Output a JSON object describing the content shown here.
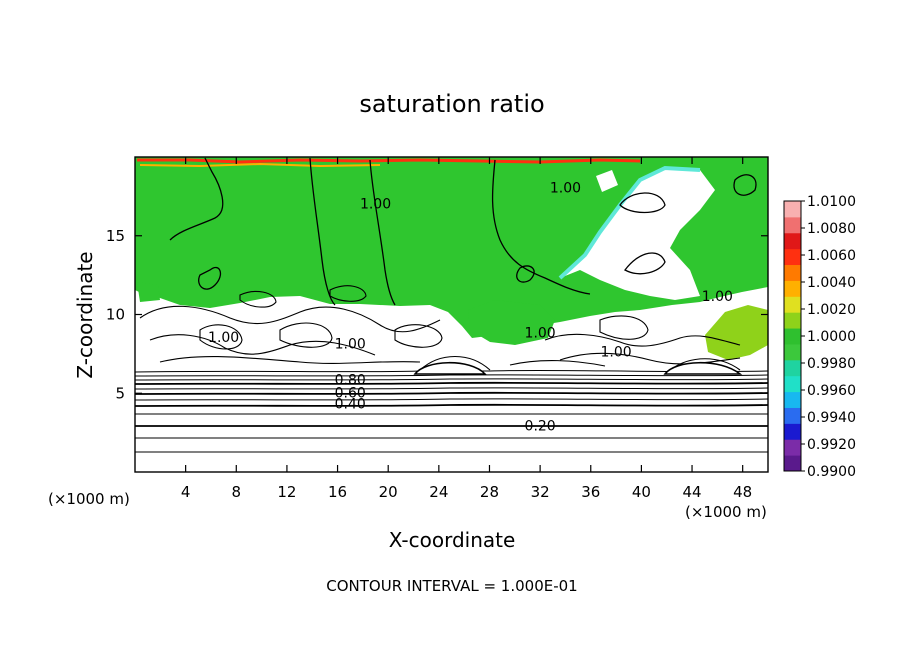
{
  "chart_data": {
    "type": "heatmap",
    "title": "saturation ratio",
    "xlabel": "X-coordinate",
    "ylabel": "Z-coordinate",
    "x_unit_left": "(×1000 m)",
    "x_unit_right": "(×1000 m)",
    "xlim": [
      0,
      50
    ],
    "ylim": [
      0,
      20
    ],
    "x_ticks": [
      4,
      8,
      12,
      16,
      20,
      24,
      28,
      32,
      36,
      40,
      44,
      48
    ],
    "y_ticks": [
      5,
      10,
      15
    ],
    "colorbar": {
      "range": [
        0.99,
        1.01
      ],
      "labels": [
        "1.0100",
        "1.0080",
        "1.0060",
        "1.0040",
        "1.0020",
        "1.0000",
        "0.9980",
        "0.9960",
        "0.9940",
        "0.9920",
        "0.9900"
      ],
      "colors": [
        "#5a1a8c",
        "#7b2ca8",
        "#1a1ad0",
        "#2a6cf0",
        "#18b8f0",
        "#20e0c8",
        "#1fd3a0",
        "#3cc83c",
        "#2fc02f",
        "#8fd21a",
        "#e0e020",
        "#ffb000",
        "#ff7a00",
        "#ff3010",
        "#e01818",
        "#f07070",
        "#f8b0b0"
      ]
    },
    "contour_interval": "CONTOUR INTERVAL = 1.000E-01",
    "contour_labels": [
      {
        "text": "1.00",
        "x": 19,
        "z": 17
      },
      {
        "text": "1.00",
        "x": 34,
        "z": 18
      },
      {
        "text": "1.00",
        "x": 7,
        "z": 8.5
      },
      {
        "text": "1.00",
        "x": 17,
        "z": 8.1
      },
      {
        "text": "1.00",
        "x": 32,
        "z": 8.8
      },
      {
        "text": "1.00",
        "x": 38,
        "z": 7.6
      },
      {
        "text": "1.00",
        "x": 46,
        "z": 11.1
      },
      {
        "text": "0.80",
        "x": 17,
        "z": 5.8
      },
      {
        "text": "0.60",
        "x": 17,
        "z": 5.0
      },
      {
        "text": "0.40",
        "x": 17,
        "z": 4.3
      },
      {
        "text": "0.20",
        "x": 32,
        "z": 2.9
      }
    ]
  },
  "colors": {
    "saturated_green": "#27c727",
    "subsaturated_cyan": "#5fe8d8",
    "supersaturated_red": "#ff3010"
  }
}
